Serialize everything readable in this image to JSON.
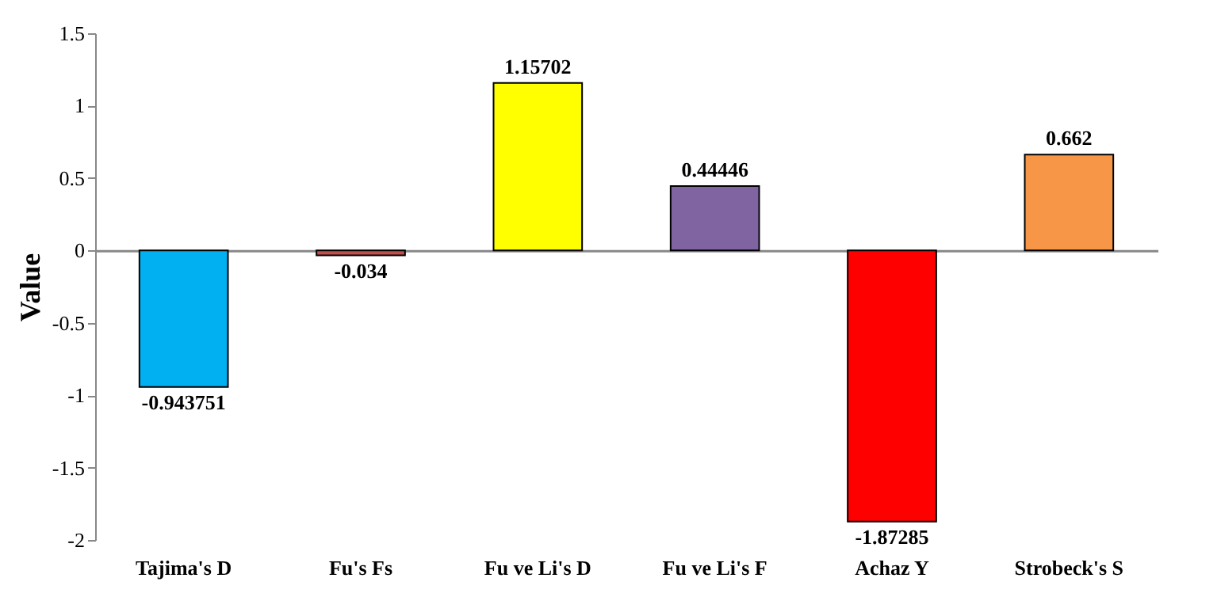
{
  "chart_data": {
    "type": "bar",
    "ylabel": "Value",
    "categories": [
      "Tajima's D",
      "Fu's Fs",
      "Fu ve Li's D",
      "Fu ve Li's F",
      "Achaz Y",
      "Strobeck's S"
    ],
    "values": [
      -0.943751,
      -0.034,
      1.15702,
      0.44446,
      -1.87285,
      0.662
    ],
    "colors": [
      "#00b0f0",
      "#c0504d",
      "#ffff00",
      "#8064a2",
      "#ff0000",
      "#f79646"
    ],
    "ylim": [
      -2,
      1.5
    ],
    "yticks": [
      -2,
      -1.5,
      -1,
      -0.5,
      0,
      0.5,
      1,
      1.5
    ],
    "data_labels": true
  }
}
